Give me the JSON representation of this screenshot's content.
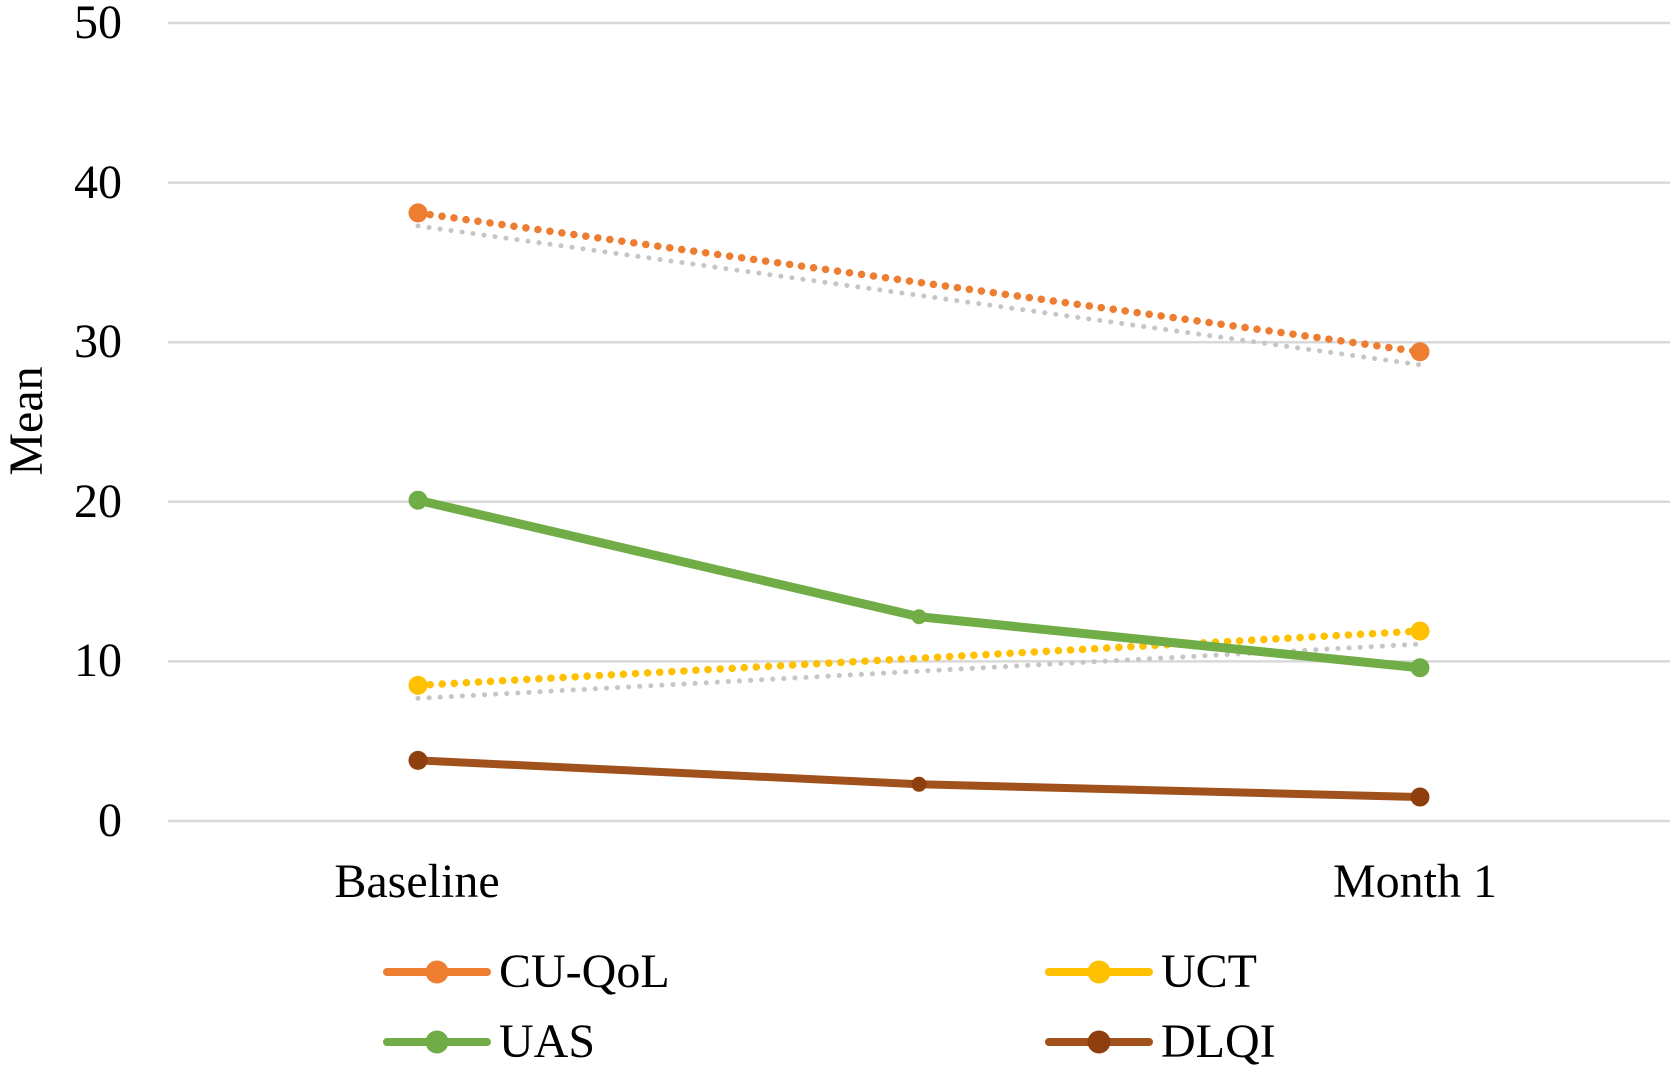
{
  "chart_data": {
    "type": "line",
    "title": "",
    "xlabel": "",
    "ylabel": "Mean",
    "ylim": [
      0,
      50
    ],
    "grid": "horizontal",
    "legend_position": "bottom",
    "x_categories": [
      "Baseline",
      "Month 1"
    ],
    "y_ticks": [
      {
        "value": 0,
        "label": "0"
      },
      {
        "value": 10,
        "label": "10"
      },
      {
        "value": 20,
        "label": "20"
      },
      {
        "value": 30,
        "label": "30"
      },
      {
        "value": 40,
        "label": "40"
      },
      {
        "value": 50,
        "label": "50"
      }
    ],
    "trendline_color": "#C6C6C6",
    "series": [
      {
        "name": "CU-QoL",
        "color": "#ED7D31",
        "line_style": "dotted",
        "gray_trendline": true,
        "points": [
          {
            "pos": 0,
            "value": 38.1
          },
          {
            "pos": 1,
            "value": 29.4
          }
        ]
      },
      {
        "name": "UCT",
        "color": "#FFC000",
        "line_style": "dotted",
        "gray_trendline": true,
        "points": [
          {
            "pos": 0,
            "value": 8.5
          },
          {
            "pos": 1,
            "value": 11.9
          }
        ]
      },
      {
        "name": "UAS",
        "color": "#70AD47",
        "line_style": "solid",
        "gray_trendline": false,
        "points": [
          {
            "pos": 0,
            "value": 20.1
          },
          {
            "pos": 0.5,
            "value": 12.8
          },
          {
            "pos": 1,
            "value": 9.6
          }
        ]
      },
      {
        "name": "DLQI",
        "color": "#A0511C",
        "marker_color": "#8F3F0E",
        "line_style": "solid",
        "gray_trendline": false,
        "points": [
          {
            "pos": 0,
            "value": 3.8
          },
          {
            "pos": 0.5,
            "value": 2.3
          },
          {
            "pos": 1,
            "value": 1.5
          }
        ]
      }
    ]
  },
  "legend": {
    "items": [
      {
        "label": "CU-QoL"
      },
      {
        "label": "UAS"
      },
      {
        "label": "UCT"
      },
      {
        "label": "DLQI"
      }
    ]
  }
}
